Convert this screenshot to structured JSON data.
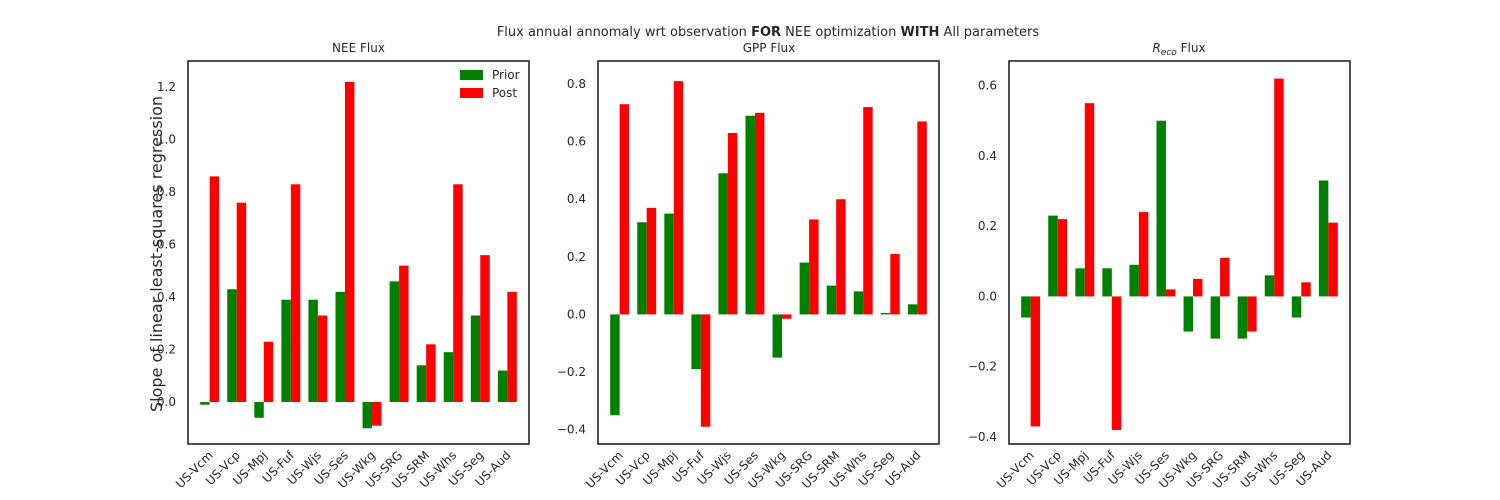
{
  "suptitle": {
    "pre": "Flux annual annomaly wrt observation ",
    "b1": "FOR",
    "mid": " NEE optimization ",
    "b2": "WITH",
    "post": " All parameters"
  },
  "colors": {
    "prior": "#008000",
    "post": "#ff0000",
    "frame": "#262626"
  },
  "chart_data": [
    {
      "type": "bar",
      "title": "NEE Flux",
      "ylabel": "Slope of linear least-squares regression",
      "ylim": [
        -0.16,
        1.3
      ],
      "yticks": [
        0.0,
        0.2,
        0.4,
        0.6,
        0.8,
        1.0,
        1.2
      ],
      "ytick_labels": [
        "0.0",
        "0.2",
        "0.4",
        "0.6",
        "0.8",
        "1.0",
        "1.2"
      ],
      "legend": {
        "position": "top-right",
        "entries": [
          "Prior",
          "Post"
        ]
      },
      "categories": [
        "US-Vcm",
        "US-Vcp",
        "US-Mpj",
        "US-Fuf",
        "US-Wjs",
        "US-Ses",
        "US-Wkg",
        "US-SRG",
        "US-SRM",
        "US-Whs",
        "US-Seg",
        "US-Aud"
      ],
      "series": [
        {
          "name": "Prior",
          "values": [
            -0.01,
            0.43,
            -0.06,
            0.39,
            0.39,
            0.42,
            -0.1,
            0.46,
            0.14,
            0.19,
            0.33,
            0.12
          ]
        },
        {
          "name": "Post",
          "values": [
            0.86,
            0.76,
            0.23,
            0.83,
            0.33,
            1.22,
            -0.09,
            0.52,
            0.22,
            0.83,
            0.56,
            0.42
          ]
        }
      ]
    },
    {
      "type": "bar",
      "title": "GPP Flux",
      "ylim": [
        -0.45,
        0.88
      ],
      "yticks": [
        -0.4,
        -0.2,
        0.0,
        0.2,
        0.4,
        0.6,
        0.8
      ],
      "ytick_labels": [
        "−0.4",
        "−0.2",
        "0.0",
        "0.2",
        "0.4",
        "0.6",
        "0.8"
      ],
      "categories": [
        "US-Vcm",
        "US-Vcp",
        "US-Mpj",
        "US-Fuf",
        "US-Wjs",
        "US-Ses",
        "US-Wkg",
        "US-SRG",
        "US-SRM",
        "US-Whs",
        "US-Seg",
        "US-Aud"
      ],
      "series": [
        {
          "name": "Prior",
          "values": [
            -0.35,
            0.32,
            0.35,
            -0.19,
            0.49,
            0.69,
            -0.15,
            0.18,
            0.1,
            0.08,
            0.005,
            0.035
          ]
        },
        {
          "name": "Post",
          "values": [
            0.73,
            0.37,
            0.81,
            -0.39,
            0.63,
            0.7,
            -0.015,
            0.33,
            0.4,
            0.72,
            0.21,
            0.67
          ]
        }
      ]
    },
    {
      "type": "bar",
      "title_pre": "R",
      "title_sub": "eco",
      "title_post": " Flux",
      "ylim": [
        -0.42,
        0.67
      ],
      "yticks": [
        -0.4,
        -0.2,
        0.0,
        0.2,
        0.4,
        0.6
      ],
      "ytick_labels": [
        "−0.4",
        "−0.2",
        "0.0",
        "0.2",
        "0.4",
        "0.6"
      ],
      "categories": [
        "US-Vcm",
        "US-Vcp",
        "US-Mpj",
        "US-Fuf",
        "US-Wjs",
        "US-Ses",
        "US-Wkg",
        "US-SRG",
        "US-SRM",
        "US-Whs",
        "US-Seg",
        "US-Aud"
      ],
      "series": [
        {
          "name": "Prior",
          "values": [
            -0.06,
            0.23,
            0.08,
            0.08,
            0.09,
            0.5,
            -0.1,
            -0.12,
            -0.12,
            0.06,
            -0.06,
            0.33
          ]
        },
        {
          "name": "Post",
          "values": [
            -0.37,
            0.22,
            0.55,
            -0.38,
            0.24,
            0.02,
            0.05,
            0.11,
            -0.1,
            0.62,
            0.04,
            0.21
          ]
        }
      ]
    }
  ]
}
